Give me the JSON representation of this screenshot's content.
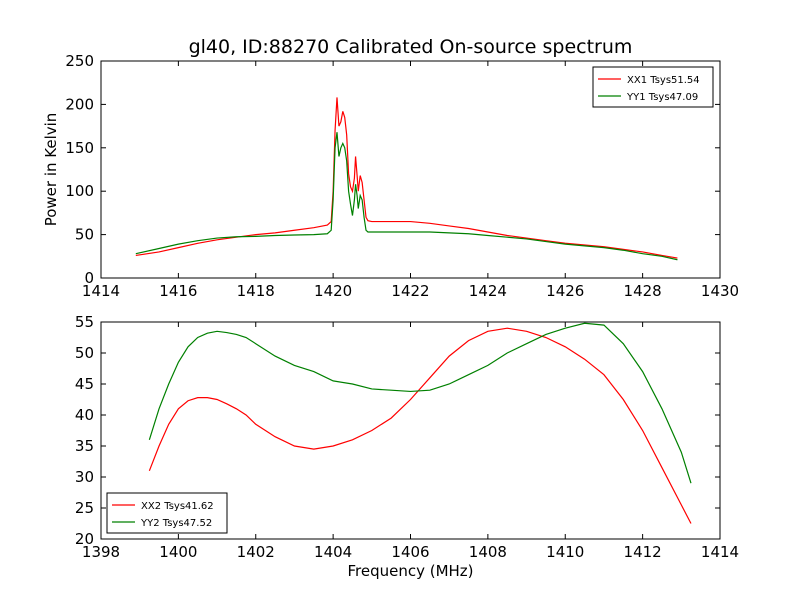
{
  "chart_data": [
    {
      "type": "line",
      "title": "gl40, ID:88270 Calibrated On-source spectrum",
      "xlabel": "",
      "ylabel": "Power in Kelvin",
      "xlim": [
        1414,
        1430
      ],
      "ylim": [
        0,
        250
      ],
      "xticks": [
        1414,
        1416,
        1418,
        1420,
        1422,
        1424,
        1426,
        1428,
        1430
      ],
      "yticks": [
        0,
        50,
        100,
        150,
        200,
        250
      ],
      "legend_position": "top-right",
      "grid": false,
      "series": [
        {
          "name": "XX1 Tsys51.54",
          "color": "#ff0000",
          "x": [
            1414.9,
            1415.5,
            1416.0,
            1416.5,
            1417.0,
            1417.5,
            1418.0,
            1418.5,
            1419.0,
            1419.5,
            1419.85,
            1419.95,
            1420.0,
            1420.05,
            1420.1,
            1420.15,
            1420.2,
            1420.25,
            1420.3,
            1420.35,
            1420.4,
            1420.45,
            1420.5,
            1420.55,
            1420.58,
            1420.62,
            1420.65,
            1420.7,
            1420.75,
            1420.8,
            1420.85,
            1420.9,
            1421.0,
            1421.5,
            1422.0,
            1422.5,
            1423.0,
            1423.5,
            1424.0,
            1424.5,
            1425.0,
            1425.5,
            1426.0,
            1426.5,
            1427.0,
            1427.5,
            1428.0,
            1428.5,
            1428.9
          ],
          "y": [
            26,
            30,
            35,
            40,
            44,
            47,
            50,
            52,
            55,
            58,
            61,
            65,
            100,
            170,
            208,
            175,
            180,
            192,
            185,
            165,
            120,
            105,
            100,
            115,
            140,
            118,
            100,
            118,
            110,
            90,
            70,
            66,
            65,
            65,
            65,
            63,
            60,
            57,
            53,
            49,
            46,
            43,
            40,
            38,
            36,
            33,
            30,
            26,
            23
          ]
        },
        {
          "name": "YY1 Tsys47.09",
          "color": "#008000",
          "x": [
            1414.9,
            1415.5,
            1416.0,
            1416.5,
            1417.0,
            1417.5,
            1418.0,
            1418.5,
            1419.0,
            1419.5,
            1419.85,
            1419.95,
            1420.0,
            1420.05,
            1420.1,
            1420.15,
            1420.2,
            1420.25,
            1420.3,
            1420.35,
            1420.4,
            1420.45,
            1420.5,
            1420.55,
            1420.58,
            1420.62,
            1420.65,
            1420.7,
            1420.75,
            1420.8,
            1420.85,
            1420.9,
            1421.0,
            1421.5,
            1422.0,
            1422.5,
            1423.0,
            1423.5,
            1424.0,
            1424.5,
            1425.0,
            1425.5,
            1426.0,
            1426.5,
            1427.0,
            1427.5,
            1428.0,
            1428.5,
            1428.9
          ],
          "y": [
            28,
            34,
            39,
            43,
            46,
            47.5,
            48,
            49,
            49.5,
            50,
            51,
            55,
            90,
            150,
            168,
            140,
            150,
            155,
            150,
            135,
            100,
            85,
            72,
            90,
            108,
            95,
            80,
            95,
            90,
            70,
            55,
            53,
            53,
            53,
            53,
            53,
            52,
            51,
            49,
            47,
            45,
            42,
            39,
            37,
            35,
            32,
            28,
            25,
            21
          ]
        }
      ]
    },
    {
      "type": "line",
      "title": "",
      "xlabel": "Frequency (MHz)",
      "ylabel": "",
      "xlim": [
        1398,
        1414
      ],
      "ylim": [
        20,
        55
      ],
      "xticks": [
        1398,
        1400,
        1402,
        1404,
        1406,
        1408,
        1410,
        1412,
        1414
      ],
      "yticks": [
        20,
        25,
        30,
        35,
        40,
        45,
        50,
        55
      ],
      "legend_position": "bottom-left",
      "grid": false,
      "series": [
        {
          "name": "XX2 Tsys41.62",
          "color": "#ff0000",
          "x": [
            1399.25,
            1399.5,
            1399.75,
            1400.0,
            1400.25,
            1400.5,
            1400.75,
            1401.0,
            1401.25,
            1401.5,
            1401.75,
            1402.0,
            1402.5,
            1403.0,
            1403.5,
            1404.0,
            1404.5,
            1405.0,
            1405.5,
            1406.0,
            1406.5,
            1407.0,
            1407.5,
            1408.0,
            1408.5,
            1409.0,
            1409.5,
            1410.0,
            1410.5,
            1411.0,
            1411.5,
            1412.0,
            1412.5,
            1413.0,
            1413.25
          ],
          "y": [
            31,
            35,
            38.5,
            41,
            42.3,
            42.8,
            42.8,
            42.5,
            41.8,
            41,
            40,
            38.5,
            36.5,
            35,
            34.5,
            35,
            36,
            37.5,
            39.5,
            42.5,
            46,
            49.5,
            52,
            53.5,
            54,
            53.5,
            52.5,
            51,
            49,
            46.5,
            42.5,
            37.5,
            31.5,
            25.5,
            22.5
          ]
        },
        {
          "name": "YY2 Tsys47.52",
          "color": "#008000",
          "x": [
            1399.25,
            1399.5,
            1399.75,
            1400.0,
            1400.25,
            1400.5,
            1400.75,
            1401.0,
            1401.25,
            1401.5,
            1401.75,
            1402.0,
            1402.5,
            1403.0,
            1403.5,
            1404.0,
            1404.5,
            1405.0,
            1405.5,
            1406.0,
            1406.5,
            1407.0,
            1407.5,
            1408.0,
            1408.5,
            1409.0,
            1409.5,
            1410.0,
            1410.5,
            1411.0,
            1411.5,
            1412.0,
            1412.5,
            1413.0,
            1413.25
          ],
          "y": [
            36,
            41,
            45,
            48.5,
            51,
            52.5,
            53.2,
            53.5,
            53.3,
            53,
            52.5,
            51.5,
            49.5,
            48,
            47,
            45.5,
            45,
            44.2,
            44,
            43.8,
            44,
            45,
            46.5,
            48,
            50,
            51.5,
            53,
            54,
            54.8,
            54.5,
            51.5,
            47,
            41,
            34,
            29
          ]
        }
      ]
    }
  ]
}
